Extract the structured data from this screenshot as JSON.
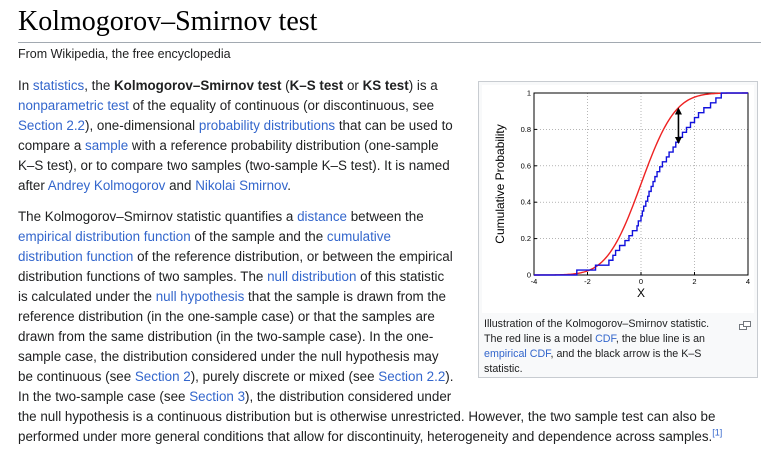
{
  "page": {
    "title": "Kolmogorov–Smirnov test",
    "tagline": "From Wikipedia, the free encyclopedia"
  },
  "paragraph1": {
    "t1": "In ",
    "l1": "statistics",
    "t2": ", the ",
    "b1": "Kolmogorov–Smirnov test",
    "t3": " (",
    "b2": "K–S test",
    "t4": " or ",
    "b3": "KS test",
    "t5": ") is a ",
    "l2": "nonparametric test",
    "t6": " of the equality of continuous (or discontinuous, see ",
    "l3": "Section 2.2",
    "t7": "), one-dimensional ",
    "l4": "probability distributions",
    "t8": " that can be used to compare a ",
    "l5": "sample",
    "t9": " with a reference probability distribution (one-sample K–S test), or to compare two samples (two-sample K–S test). It is named after ",
    "l6": "Andrey Kolmogorov",
    "t10": " and ",
    "l7": "Nikolai Smirnov",
    "t11": "."
  },
  "paragraph2": {
    "t1": "The Kolmogorov–Smirnov statistic quantifies a ",
    "l1": "distance",
    "t2": " between the ",
    "l2": "empirical distribution function",
    "t3": " of the sample and the ",
    "l3": "cumulative distribution function",
    "t4": " of the reference distribution, or between the empirical distribution functions of two samples. The ",
    "l4": "null distribution",
    "t5": " of this statistic is calculated under the ",
    "l5": "null hypothesis",
    "t6": " that the sample is drawn from the reference distribution (in the one-sample case) or that the samples are drawn from the same distribution (in the two-sample case). In the one-sample case, the distribution considered under the null hypothesis may be continuous (see ",
    "l6": "Section 2",
    "t7": "), purely discrete or mixed (see ",
    "l7": "Section 2.2",
    "t8": "). In the two-sample case (see ",
    "l8": "Section 3",
    "t9": "), the distribution considered under the null hypothesis is a continuous distribution but is otherwise unrestricted. However, the two sample test can also be performed under more general conditions that allow for discontinuity, heterogeneity and dependence across samples.",
    "ref": "[1]"
  },
  "figure": {
    "caption": {
      "t1": "Illustration of the Kolmogorov–Smirnov statistic. The red line is a model ",
      "l1": "CDF",
      "t2": ", the blue line is an ",
      "l2": "empirical CDF",
      "t3": ", and the black arrow is the K–S statistic."
    },
    "enlarge_icon": "magnify-clip-icon"
  },
  "chart_data": {
    "type": "line",
    "xlabel": "X",
    "ylabel": "Cumulative Probability",
    "xlim": [
      -4,
      4
    ],
    "ylim": [
      0,
      1
    ],
    "xticks": [
      "-4",
      "-2",
      "0",
      "2",
      "4"
    ],
    "yticks": [
      "0",
      "0.2",
      "0.4",
      "0.6",
      "0.8",
      "1"
    ],
    "grid": true,
    "series": [
      {
        "name": "",
        "color": "#ee2222",
        "kind": "model-cdf",
        "mean": 0,
        "sd": 1
      },
      {
        "name": "",
        "color": "#1111dd",
        "kind": "empirical-cdf",
        "samples": [
          -2.4,
          -1.7,
          -1.2,
          -1.05,
          -0.95,
          -0.8,
          -0.6,
          -0.45,
          -0.32,
          -0.15,
          -0.1,
          0,
          0.05,
          0.1,
          0.18,
          0.25,
          0.3,
          0.38,
          0.45,
          0.52,
          0.6,
          0.7,
          0.8,
          0.95,
          1.05,
          1.2,
          1.3,
          1.42,
          1.55,
          1.7,
          1.85,
          2.0,
          2.15,
          2.35,
          2.6,
          2.8,
          3.0
        ]
      }
    ],
    "ks_arrow": {
      "x": 1.4,
      "y_low": 0.72,
      "y_high": 0.92,
      "color": "#000000"
    }
  }
}
